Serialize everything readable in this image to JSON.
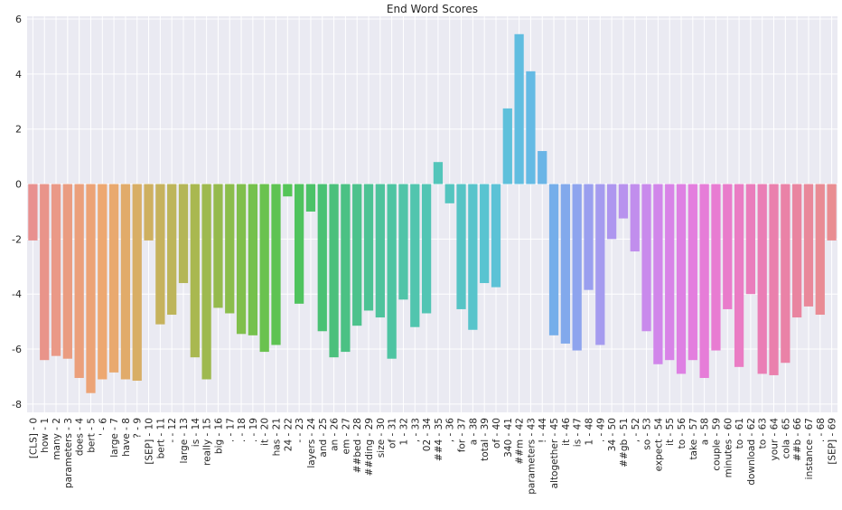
{
  "chart_data": {
    "type": "bar",
    "title": "End Word Scores",
    "xlabel": "",
    "ylabel": "",
    "ylim": [
      -8.3,
      6.1
    ],
    "yticks": [
      -8,
      -6,
      -4,
      -2,
      0,
      2,
      4,
      6
    ],
    "grid": true,
    "categories": [
      "[CLS] - 0",
      "how - 1",
      "many - 2",
      "parameters - 3",
      "does - 4",
      "bert - 5",
      "' - 6",
      "large - 7",
      "have - 8",
      "? - 9",
      "[SEP] - 10",
      "bert - 11",
      "- - 12",
      "large - 13",
      "is - 14",
      "really - 15",
      "big - 16",
      ". - 17",
      ". - 18",
      ". - 19",
      "it - 20",
      "has - 21",
      "24 - 22",
      "- - 23",
      "layers - 24",
      "and - 25",
      "an - 26",
      "em - 27",
      "##bed - 28",
      "##ding - 29",
      "size - 30",
      "of - 31",
      "1 - 32",
      ", - 33",
      "02 - 34",
      "##4 - 35",
      ", - 36",
      "for - 37",
      "a - 38",
      "total - 39",
      "of - 40",
      "340 - 41",
      "##m - 42",
      "parameters - 43",
      "! - 44",
      "altogether - 45",
      "it - 46",
      "is - 47",
      "1 - 48",
      ". - 49",
      "34 - 50",
      "##gb - 51",
      ", - 52",
      "so - 53",
      "expect - 54",
      "it - 55",
      "to - 56",
      "take - 57",
      "a - 58",
      "couple - 59",
      "minutes - 60",
      "to - 61",
      "download - 62",
      "to - 63",
      "your - 64",
      "cola - 65",
      "##b - 66",
      "instance - 67",
      ". - 68",
      "[SEP] - 69"
    ],
    "values": [
      -2.05,
      -6.4,
      -6.25,
      -6.35,
      -7.05,
      -7.6,
      -7.1,
      -6.85,
      -7.1,
      -7.15,
      -2.05,
      -5.1,
      -4.75,
      -3.6,
      -6.3,
      -7.1,
      -4.5,
      -4.7,
      -5.45,
      -5.5,
      -6.1,
      -5.85,
      -0.45,
      -4.35,
      -1.0,
      -5.35,
      -6.3,
      -6.1,
      -5.15,
      -4.6,
      -4.85,
      -6.35,
      -4.2,
      -5.2,
      -4.7,
      0.8,
      -0.7,
      -4.55,
      -5.3,
      -3.6,
      -3.75,
      2.75,
      5.45,
      4.1,
      1.2,
      -5.5,
      -5.8,
      -6.05,
      -3.85,
      -5.85,
      -2.0,
      -1.25,
      -2.45,
      -5.35,
      -6.55,
      -6.4,
      -6.9,
      -6.4,
      -7.05,
      -6.05,
      -4.55,
      -6.65,
      -4.0,
      -6.9,
      -6.95,
      -6.5,
      -4.85,
      -4.45,
      -4.75,
      -2.05
    ],
    "colors": [
      "#e8908f",
      "#e9948a",
      "#ea9987",
      "#ea9c81",
      "#eb9f7b",
      "#eca376",
      "#eda871",
      "#e9a96f",
      "#e1ab6a",
      "#d8ae66",
      "#ceb060",
      "#c6b25d",
      "#bdb55a",
      "#b4b657",
      "#a9b850",
      "#9eb94f",
      "#95ba4d",
      "#8bbd4b",
      "#80bf4c",
      "#75c14d",
      "#6ac24f",
      "#5ec352",
      "#55c557",
      "#4fc35e",
      "#4cc268",
      "#4ac174",
      "#4bc07c",
      "#4bc184",
      "#4cc28c",
      "#4cc394",
      "#4ec39c",
      "#4ec4a2",
      "#50c4a8",
      "#51c5ae",
      "#52c5b4",
      "#53c5ba",
      "#54c5bf",
      "#56c4c5",
      "#58c4cb",
      "#59c4d1",
      "#5cc2d6",
      "#5ec0db",
      "#60bde0",
      "#64bae4",
      "#6ab5e6",
      "#75aeea",
      "#82a9ec",
      "#8ea4ee",
      "#9a9fef",
      "#a59bef",
      "#ae96ef",
      "#b892ee",
      "#c18eed",
      "#c98aec",
      "#d186ea",
      "#d883e7",
      "#de80e3",
      "#e37ede",
      "#e67dd8",
      "#e87cd2",
      "#e97ccb",
      "#ea7cc4",
      "#ea7dbc",
      "#ea7eb5",
      "#ea80ad",
      "#ea82a7",
      "#e985a0",
      "#e9889a",
      "#e98b94",
      "#e98d91"
    ]
  }
}
